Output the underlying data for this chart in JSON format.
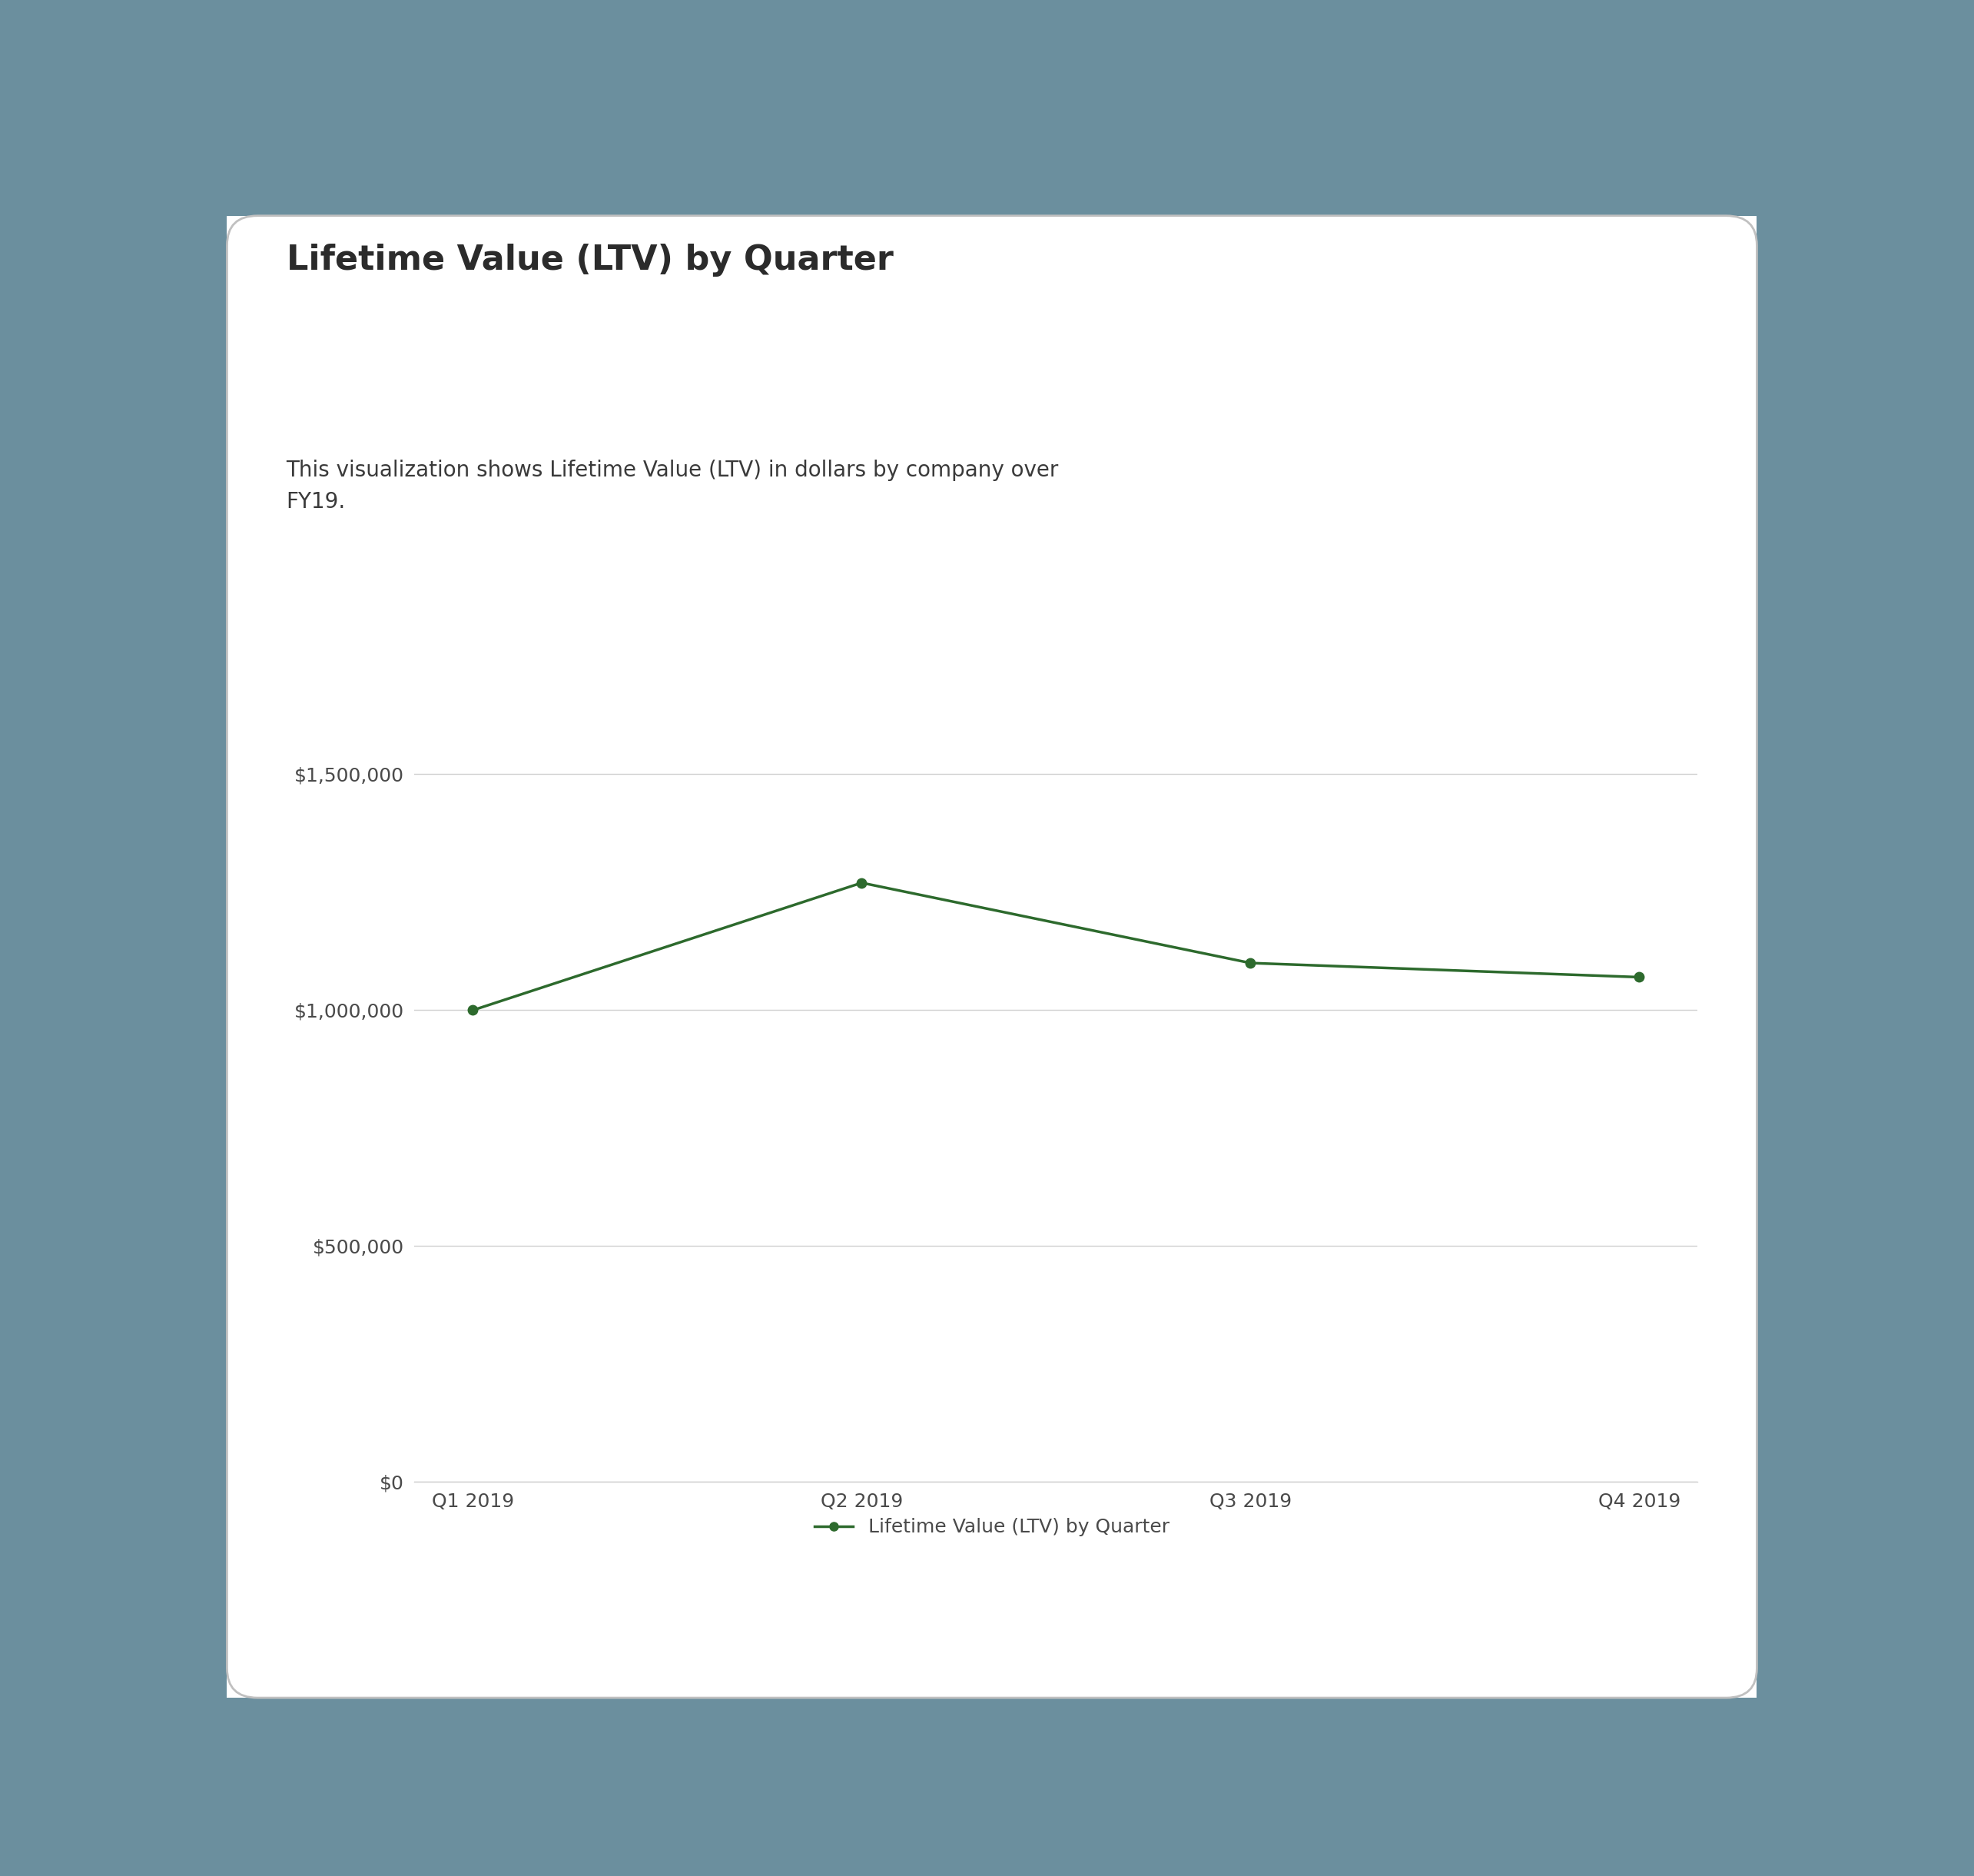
{
  "title": "Lifetime Value (LTV) by Quarter",
  "subtitle": "This visualization shows Lifetime Value (LTV) in dollars by company over\nFY19.",
  "x_labels": [
    "Q1 2019",
    "Q2 2019",
    "Q3 2019",
    "Q4 2019"
  ],
  "y_values": [
    1000000,
    1270000,
    1100000,
    1070000
  ],
  "line_color": "#2d6a2d",
  "marker_color": "#2d6a2d",
  "y_ticks": [
    0,
    500000,
    1000000,
    1500000
  ],
  "y_tick_labels": [
    "$0",
    "$500,000",
    "$1,000,000",
    "$1,500,000"
  ],
  "ylim": [
    0,
    1650000
  ],
  "legend_label": "Lifetime Value (LTV) by Quarter",
  "background_color": "#6b8f9e",
  "card_color": "#ffffff",
  "title_color": "#2b2b2b",
  "subtitle_color": "#3a3a3a",
  "axis_label_color": "#4a4a4a",
  "grid_color": "#d0d0d0",
  "title_fontsize": 32,
  "subtitle_fontsize": 20,
  "tick_fontsize": 18,
  "legend_fontsize": 18,
  "line_width": 2.5,
  "marker_size": 9
}
